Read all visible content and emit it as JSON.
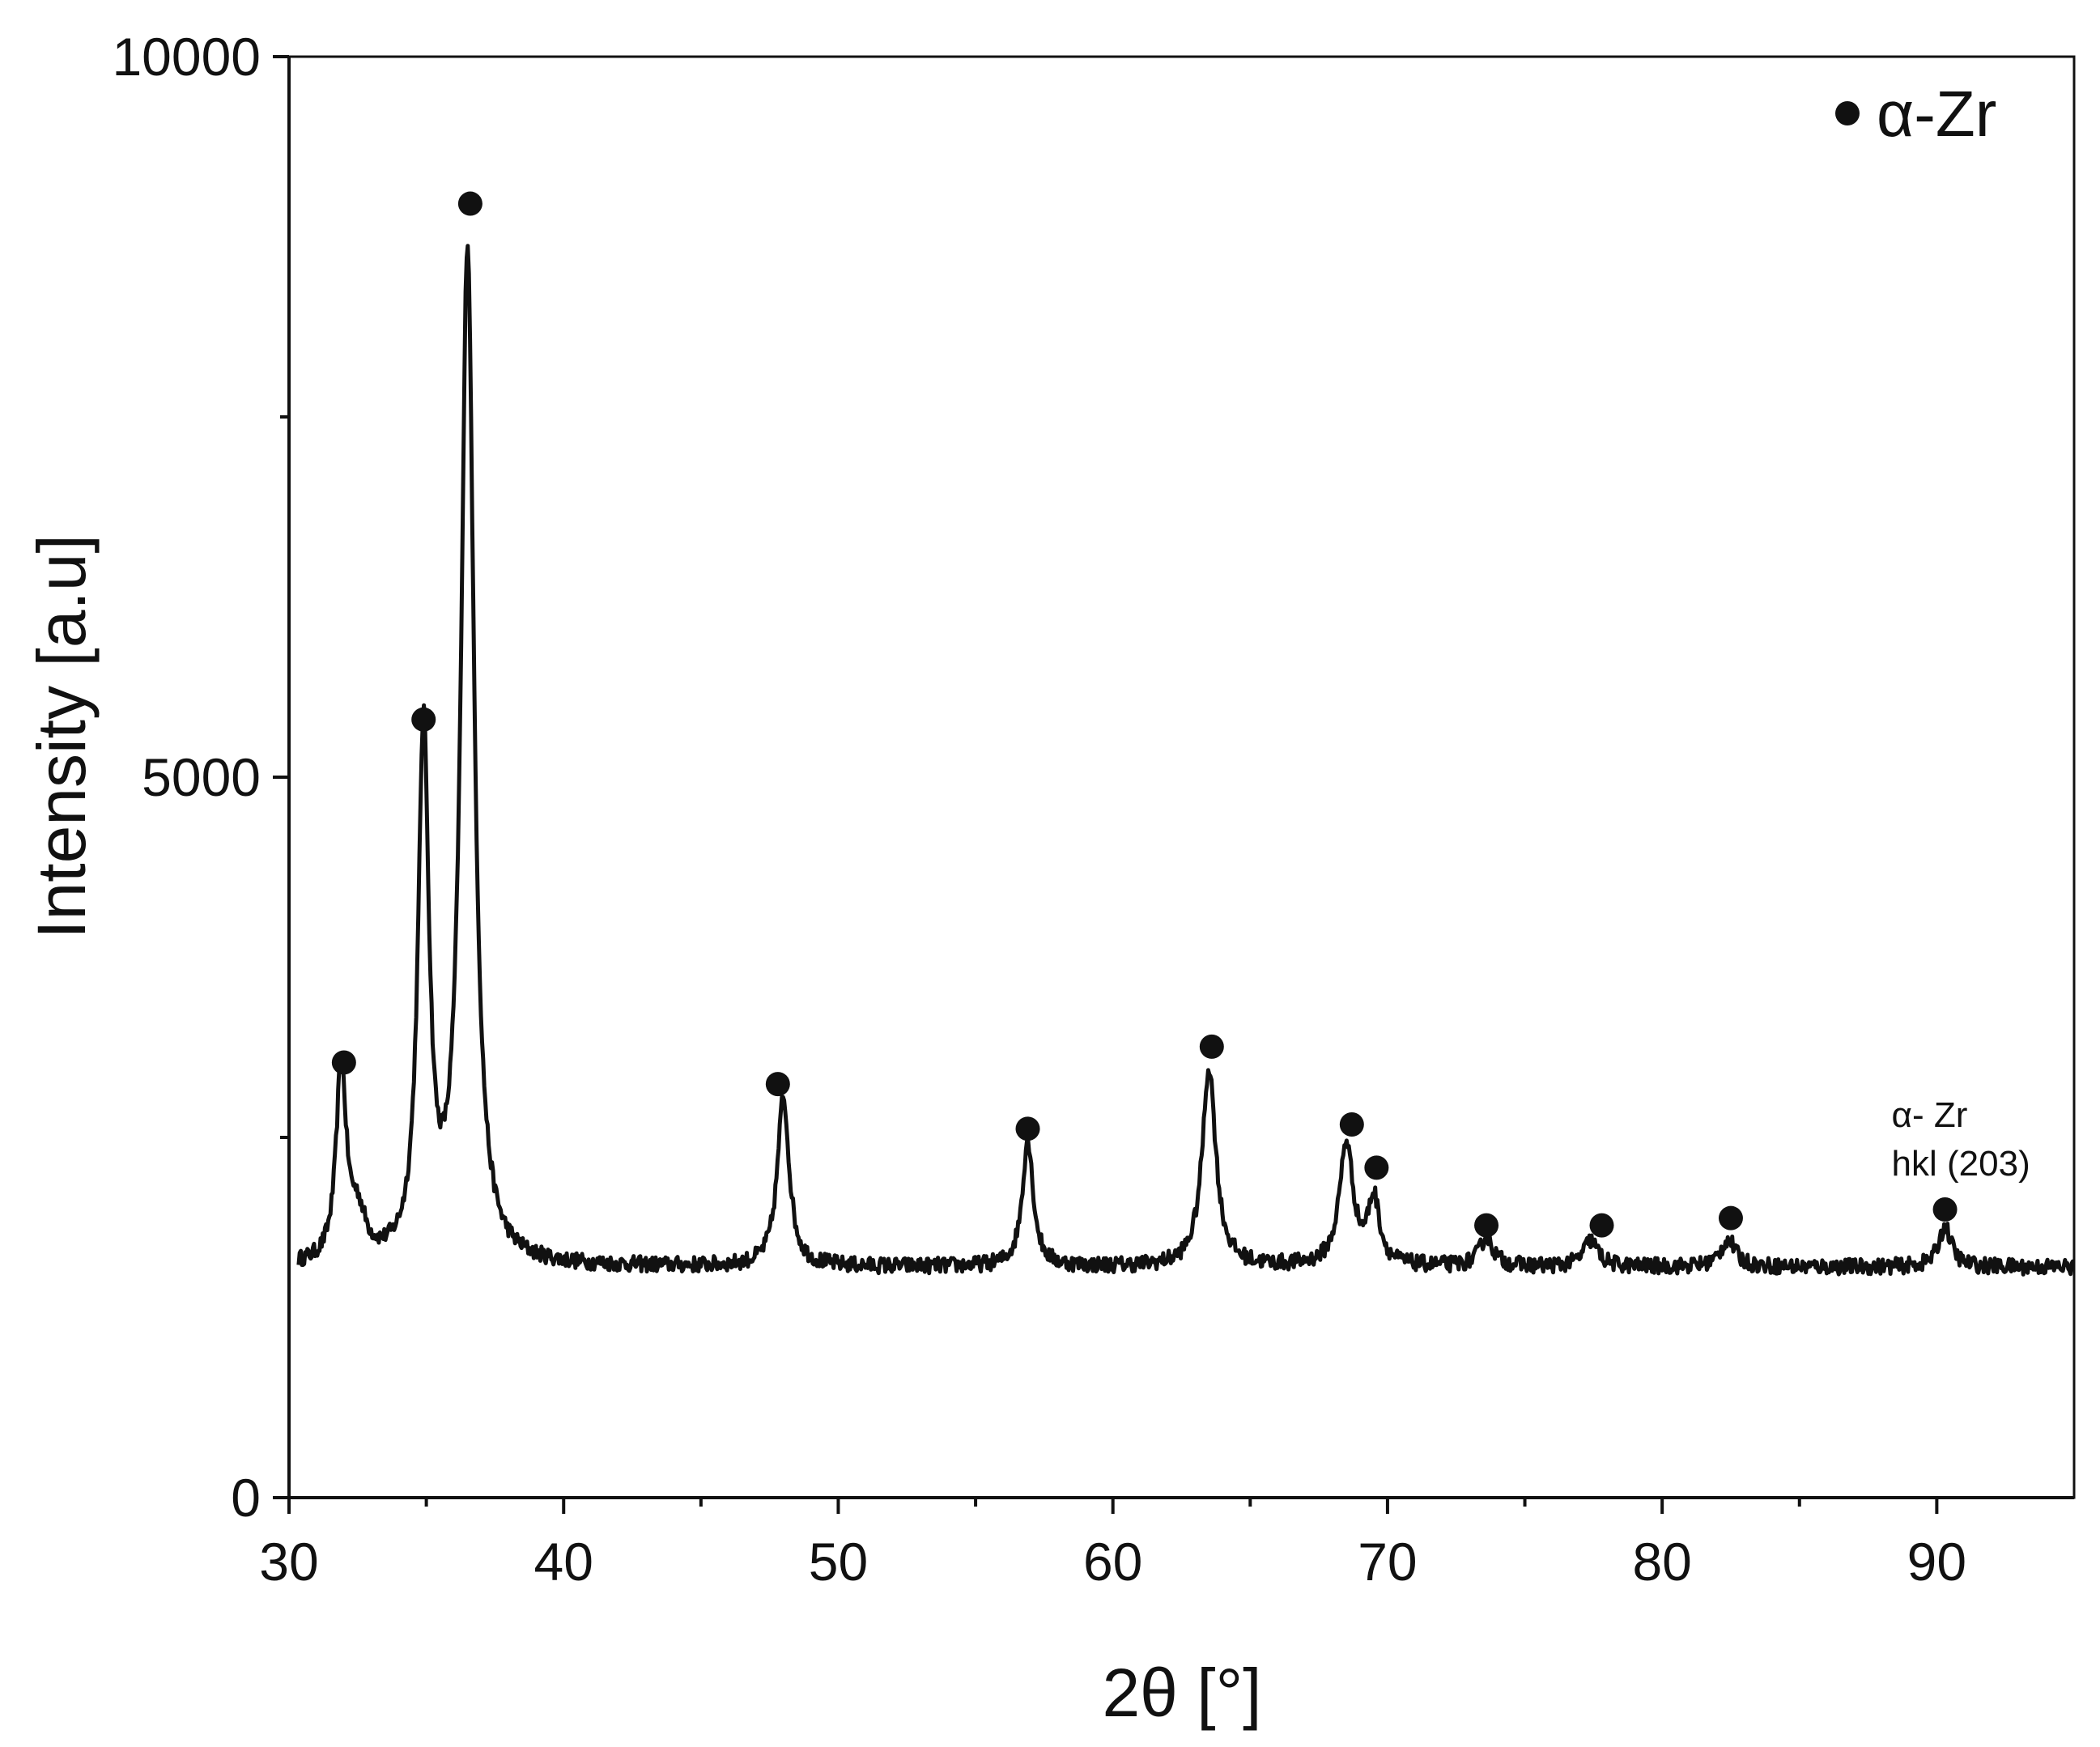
{
  "chart_data": {
    "type": "line",
    "title": "",
    "xlabel": "2θ [°]",
    "ylabel": "Intensity [a.u]",
    "xlim": [
      30,
      95
    ],
    "ylim": [
      0,
      10000
    ],
    "x_major_ticks": [
      30,
      40,
      50,
      60,
      70,
      80,
      90
    ],
    "x_tick_labels": [
      "30",
      "40",
      "50",
      "60",
      "70",
      "80",
      "90"
    ],
    "x_minor_ticks": [
      35,
      45,
      55,
      65,
      75,
      85
    ],
    "y_major_ticks": [
      0,
      5000,
      10000
    ],
    "y_tick_labels": [
      "0",
      "5000",
      "10000"
    ],
    "y_minor_ticks": [
      2500,
      7500
    ],
    "grid": false,
    "legend": {
      "placement": "top-right",
      "entries": [
        {
          "label": "α-Zr",
          "marker": "filled-circle"
        }
      ]
    },
    "series": [
      {
        "baseline": 1600,
        "peaks": [
          {
            "x": 31.9,
            "y": 2950
          },
          {
            "x": 32.5,
            "y": 1900
          },
          {
            "x": 34.9,
            "y": 5250
          },
          {
            "x": 36.5,
            "y": 8650
          },
          {
            "x": 48.0,
            "y": 2780
          },
          {
            "x": 56.9,
            "y": 2480
          },
          {
            "x": 63.5,
            "y": 2980
          },
          {
            "x": 68.5,
            "y": 2450
          },
          {
            "x": 69.5,
            "y": 2050
          },
          {
            "x": 73.6,
            "y": 1800
          },
          {
            "x": 77.4,
            "y": 1780
          },
          {
            "x": 82.4,
            "y": 1790
          },
          {
            "x": 90.3,
            "y": 1880
          }
        ]
      }
    ],
    "markers": [
      {
        "x": 32.0,
        "y": 3020
      },
      {
        "x": 34.9,
        "y": 5400
      },
      {
        "x": 36.6,
        "y": 8980
      },
      {
        "x": 47.8,
        "y": 2870
      },
      {
        "x": 56.9,
        "y": 2560
      },
      {
        "x": 63.6,
        "y": 3130
      },
      {
        "x": 68.7,
        "y": 2590
      },
      {
        "x": 69.6,
        "y": 2290
      },
      {
        "x": 73.6,
        "y": 1890
      },
      {
        "x": 77.8,
        "y": 1890
      },
      {
        "x": 82.5,
        "y": 1940
      },
      {
        "x": 90.3,
        "y": 2000
      }
    ],
    "annotation": {
      "x": 90.3,
      "line1": "α- Zr",
      "line2": "hkl (203)"
    },
    "colors": {
      "trace": "#111111",
      "marker": "#111111",
      "background": "#ffffff"
    }
  }
}
